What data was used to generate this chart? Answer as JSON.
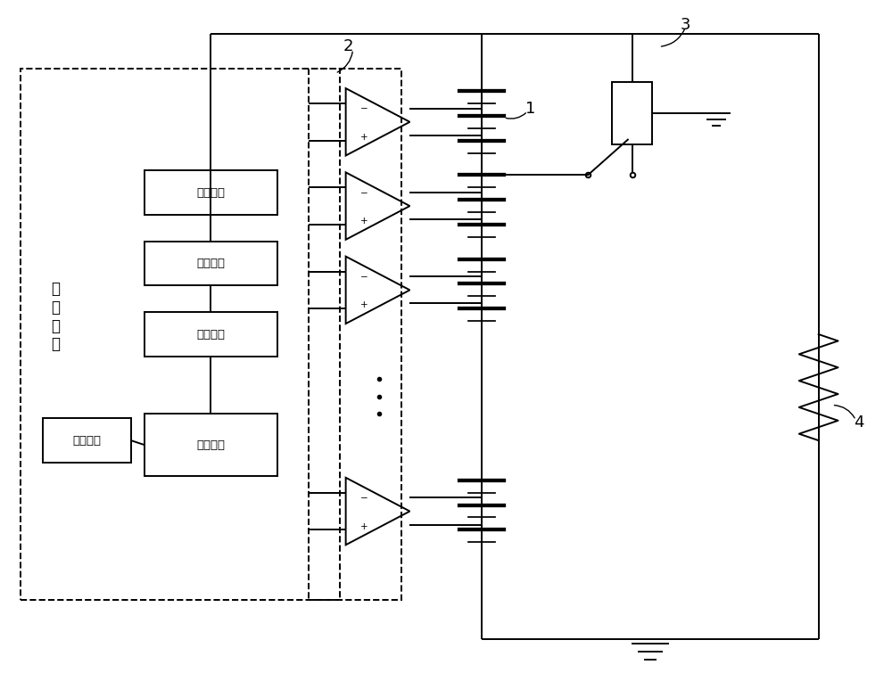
{
  "bg_color": "#ffffff",
  "lw": 1.4,
  "fig_width": 10.0,
  "fig_height": 7.55,
  "labels": {
    "ctrl_circuit": "控\n制\n电\n路",
    "drive_circuit": "驱动电路",
    "amplify_circuit": "放大电路",
    "feedback_circuit": "反馈电路",
    "control_chip": "控制芯片",
    "warning_circuit": "预警电路",
    "label1": "1",
    "label2": "2",
    "label3": "3",
    "label4": "4"
  }
}
